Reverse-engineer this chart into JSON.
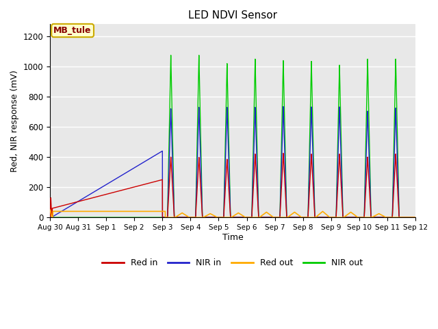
{
  "title": "LED NDVI Sensor",
  "xlabel": "Time",
  "ylabel": "Red, NIR response (mV)",
  "annotation_text": "MB_tule",
  "annotation_bg": "#ffffcc",
  "annotation_border": "#ccaa00",
  "annotation_text_color": "#880000",
  "ylim": [
    0,
    1280
  ],
  "yticks": [
    0,
    200,
    400,
    600,
    800,
    1000,
    1200
  ],
  "bg_color": "#e8e8e8",
  "colors": {
    "red_in": "#cc0000",
    "nir_in": "#2222cc",
    "red_out": "#ffaa00",
    "nir_out": "#00cc00"
  },
  "legend_labels": [
    "Red in",
    "NIR in",
    "Red out",
    "NIR out"
  ],
  "tick_labels": [
    "Aug 30",
    "Aug 31",
    "Sep 1",
    "Sep 2",
    "Sep 3",
    "Sep 4",
    "Sep 5",
    "Sep 6",
    "Sep 7",
    "Sep 8",
    "Sep 9",
    "Sep 10",
    "Sep 11",
    "Sep 12"
  ]
}
